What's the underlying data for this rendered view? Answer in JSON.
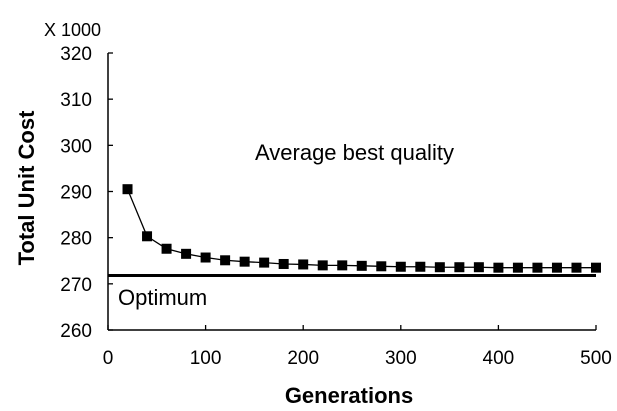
{
  "chart_data": {
    "type": "line",
    "title": "",
    "multiplier_label": "X 1000",
    "xlabel": "Generations",
    "ylabel": "Total Unit Cost",
    "xlim": [
      0,
      500
    ],
    "ylim": [
      260,
      320
    ],
    "x_ticks": [
      0,
      100,
      200,
      300,
      400,
      500
    ],
    "y_ticks": [
      260,
      270,
      280,
      290,
      300,
      310,
      320
    ],
    "x_tick_labels": [
      "0",
      "100",
      "200",
      "300",
      "400",
      "500"
    ],
    "y_tick_labels": [
      "260",
      "270",
      "280",
      "290",
      "300",
      "310",
      "320"
    ],
    "grid": false,
    "series": [
      {
        "name": "Average best quality",
        "marker": "square",
        "color": "#000000",
        "x": [
          20,
          40,
          60,
          80,
          100,
          120,
          140,
          160,
          180,
          200,
          220,
          240,
          260,
          280,
          300,
          320,
          340,
          360,
          380,
          400,
          420,
          440,
          460,
          480,
          500
        ],
        "y": [
          290.5,
          280.3,
          277.6,
          276.5,
          275.7,
          275.1,
          274.8,
          274.6,
          274.3,
          274.2,
          274.0,
          274.0,
          273.9,
          273.8,
          273.7,
          273.7,
          273.6,
          273.6,
          273.6,
          273.5,
          273.5,
          273.5,
          273.5,
          273.5,
          273.5
        ]
      }
    ],
    "reference_lines": [
      {
        "name": "Optimum",
        "y": 271.8,
        "x_from": 0,
        "x_to": 500
      }
    ],
    "annotations": [
      "Average best quality",
      "Optimum"
    ]
  }
}
